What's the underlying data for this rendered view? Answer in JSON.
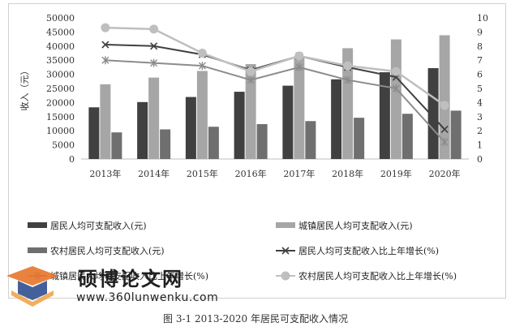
{
  "caption": "图 3-1  2013-2020 年居民可支配收入情况",
  "watermark": {
    "title": "硕博论文网",
    "url": "www.360lunwenku.com"
  },
  "chart_data": {
    "type": "bar",
    "categories": [
      "2013年",
      "2014年",
      "2015年",
      "2016年",
      "2017年",
      "2018年",
      "2019年",
      "2020年"
    ],
    "ylabel": "收入（元）",
    "ylim": [
      0,
      50000
    ],
    "y_ticks": [
      "0",
      "5000",
      "10000",
      "15000",
      "20000",
      "25000",
      "30000",
      "35000",
      "40000",
      "45000",
      "50000"
    ],
    "y2lim": [
      0,
      10
    ],
    "y2_ticks": [
      "0",
      "1",
      "2",
      "3",
      "4",
      "5",
      "6",
      "7",
      "8",
      "9",
      "10"
    ],
    "grid": false,
    "legend_position": "bottom",
    "bar_series": [
      {
        "name": "居民人均可支配收入(元)",
        "color": "#404040",
        "values": [
          18311,
          20167,
          21966,
          23821,
          25974,
          28228,
          30733,
          32189
        ]
      },
      {
        "name": "城镇居民人均可支配收入(元)",
        "color": "#a6a6a6",
        "values": [
          26467,
          28844,
          31195,
          33616,
          36396,
          39251,
          42359,
          43834
        ]
      },
      {
        "name": "农村居民人均可支配收入(元)",
        "color": "#6f6f6f",
        "values": [
          9430,
          10489,
          11422,
          12363,
          13432,
          14617,
          16021,
          17131
        ]
      }
    ],
    "line_series": [
      {
        "name": "居民人均可支配收入比上年增长(%)",
        "color": "#404040",
        "marker": "x",
        "values": [
          8.1,
          8.0,
          7.4,
          6.3,
          7.3,
          6.5,
          5.8,
          2.1
        ]
      },
      {
        "name": "城镇居民人均可支配收入比上年增长(%)",
        "color": "#8c8c8c",
        "marker": "asterisk",
        "values": [
          7.0,
          6.8,
          6.6,
          5.6,
          6.5,
          5.6,
          5.0,
          1.2
        ]
      },
      {
        "name": "农村居民人均可支配收入比上年增长(%)",
        "color": "#bfbfbf",
        "marker": "circle",
        "values": [
          9.3,
          9.2,
          7.5,
          6.2,
          7.3,
          6.6,
          6.2,
          3.8
        ]
      }
    ]
  }
}
